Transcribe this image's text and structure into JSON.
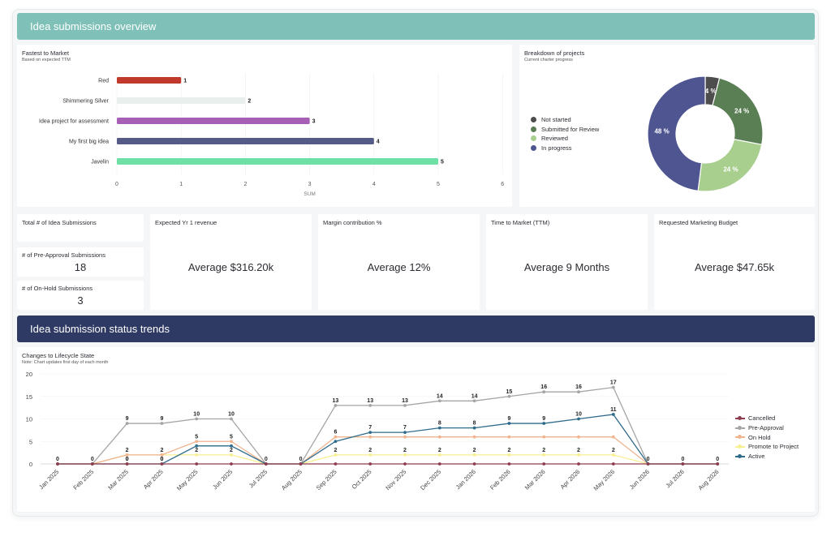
{
  "header": {
    "title": "Idea submissions overview",
    "color": "#7fc1b8"
  },
  "trends_header": {
    "title": "Idea submission status trends",
    "color": "#2e3a63"
  },
  "bar_chart": {
    "title": "Fastest to Market",
    "subtitle": "Based on expected TTM"
  },
  "donut_chart": {
    "title": "Breakdown of projects",
    "subtitle": "Current charter progress"
  },
  "kpis": {
    "total_label": "Total # of Idea Submissions",
    "preapproval_label": "# of Pre-Approval Submissions",
    "preapproval_value": "18",
    "onhold_label": "# of On-Hold Submissions",
    "onhold_value": "3",
    "revenue_label": "Expected Yr 1 revenue",
    "revenue_value": "Average $316.20k",
    "margin_label": "Margin contribution %",
    "margin_value": "Average 12%",
    "ttm_label": "Time to Market (TTM)",
    "ttm_value": "Average 9 Months",
    "budget_label": "Requested Marketing Budget",
    "budget_value": "Average $47.65k"
  },
  "line_chart": {
    "title": "Changes to Lifecycle State",
    "subtitle": "Note: Chart updates first day of each month"
  },
  "chart_data": [
    {
      "type": "bar",
      "orientation": "horizontal",
      "title": "Fastest to Market",
      "subtitle": "Based on expected TTM",
      "categories": [
        "Red",
        "Shimmering Silver",
        "Idea project for assessment",
        "My first big idea",
        "Javelin"
      ],
      "values": [
        1,
        2,
        3,
        4,
        5
      ],
      "colors": [
        "#c0392b",
        "#e8efec",
        "#a65fb5",
        "#565a87",
        "#6ee0a6"
      ],
      "xlabel": "SUM",
      "xlim": [
        0,
        6
      ],
      "xticks": [
        0,
        1,
        2,
        3,
        4,
        5,
        6
      ],
      "data_labels": true
    },
    {
      "type": "pie",
      "donut": true,
      "title": "Breakdown of projects",
      "subtitle": "Current charter progress",
      "labels": [
        "Not started",
        "Submitted for Review",
        "Reviewed",
        "In progress"
      ],
      "values": [
        4,
        24,
        24,
        48
      ],
      "value_labels": [
        "4 %",
        "24 %",
        "24 %",
        "48 %"
      ],
      "colors": [
        "#4d4d4d",
        "#5b7f55",
        "#a8cf8e",
        "#4e5591"
      ],
      "legend": "left"
    },
    {
      "type": "line",
      "title": "Changes to Lifecycle State",
      "subtitle": "Note: Chart updates first day of each month",
      "x": [
        "Jan 2025",
        "Feb 2025",
        "Mar 2025",
        "Apr 2025",
        "May 2025",
        "Jun 2025",
        "Jul 2025",
        "Aug 2025",
        "Sep 2025",
        "Oct 2025",
        "Nov 2025",
        "Dec 2025",
        "Jan 2026",
        "Feb 2026",
        "Mar 2026",
        "Apr 2026",
        "May 2026",
        "Jun 2026",
        "Jul 2026",
        "Aug 2026"
      ],
      "ylim": [
        0,
        20
      ],
      "yticks": [
        0,
        5,
        10,
        15,
        20
      ],
      "legend": "right",
      "series": [
        {
          "name": "Cancelled",
          "color": "#8e3c4e",
          "values": [
            0,
            0,
            0,
            0,
            0,
            0,
            0,
            0,
            0,
            0,
            0,
            0,
            0,
            0,
            0,
            0,
            0,
            0,
            0,
            0
          ],
          "labels": false
        },
        {
          "name": "Pre-Approval",
          "color": "#a5a5a5",
          "values": [
            0,
            0,
            9,
            9,
            10,
            10,
            0,
            0,
            13,
            13,
            13,
            14,
            14,
            15,
            16,
            16,
            17,
            0,
            0,
            0
          ],
          "labels": true
        },
        {
          "name": "On Hold",
          "color": "#f0b48f",
          "values": [
            0,
            0,
            2,
            2,
            5,
            5,
            0,
            0,
            6,
            6,
            6,
            6,
            6,
            6,
            6,
            6,
            6,
            0,
            0,
            0
          ],
          "labels": false
        },
        {
          "name": "Promote to Project",
          "color": "#f7ef8f",
          "values": [
            0,
            0,
            2,
            2,
            2,
            2,
            0,
            0,
            2,
            2,
            2,
            2,
            2,
            2,
            2,
            2,
            2,
            0,
            0,
            0
          ],
          "labels": true
        },
        {
          "name": "Active",
          "color": "#2f6b8a",
          "values": [
            0,
            0,
            0,
            0,
            4,
            4,
            0,
            0,
            5,
            7,
            7,
            8,
            8,
            9,
            9,
            10,
            11,
            0,
            0,
            0
          ],
          "labels": true
        }
      ],
      "point_labels_shown": [
        {
          "i": 0,
          "v": "0"
        },
        {
          "i": 1,
          "v": "0"
        },
        {
          "i": 2,
          "v": "9"
        },
        {
          "i": 3,
          "v": "9"
        },
        {
          "i": 4,
          "v": "10"
        },
        {
          "i": 5,
          "v": "10"
        },
        {
          "i": 6,
          "v": "0"
        },
        {
          "i": 7,
          "v": "0"
        },
        {
          "i": 8,
          "v": "13"
        },
        {
          "i": 9,
          "v": "13"
        },
        {
          "i": 10,
          "v": "13"
        },
        {
          "i": 11,
          "v": "14"
        },
        {
          "i": 12,
          "v": "14"
        },
        {
          "i": 13,
          "v": "15"
        },
        {
          "i": 14,
          "v": "16"
        },
        {
          "i": 15,
          "v": "16"
        },
        {
          "i": 16,
          "v": "17"
        },
        {
          "i": 17,
          "v": "0"
        },
        {
          "i": 18,
          "v": "0"
        },
        {
          "i": 19,
          "v": "0"
        }
      ]
    }
  ]
}
